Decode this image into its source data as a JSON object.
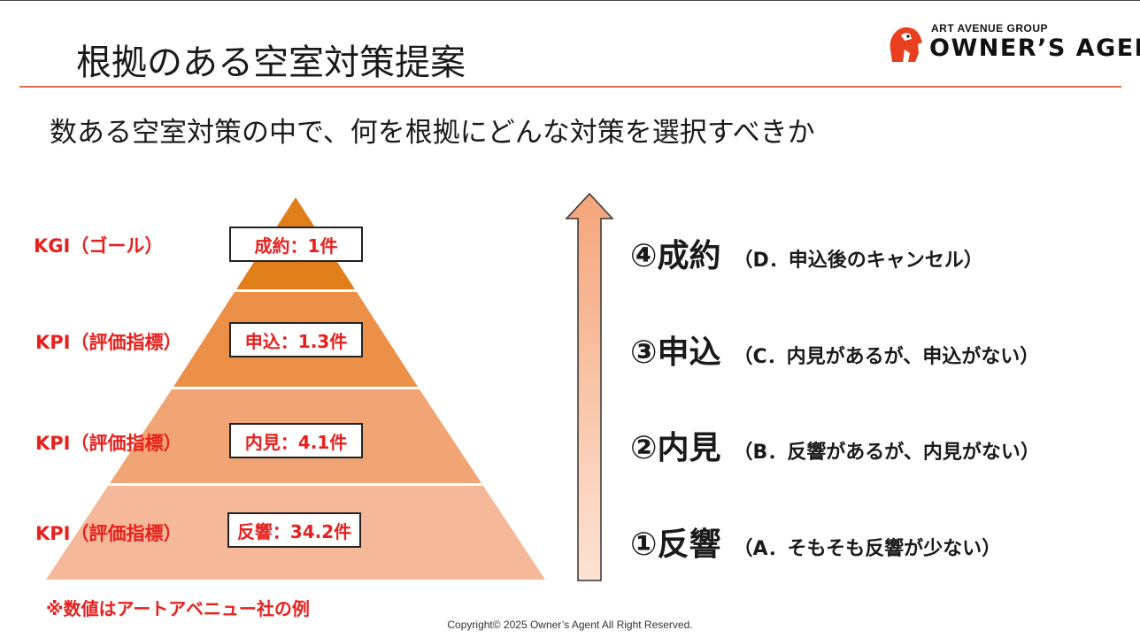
{
  "slide": {
    "title": "根拠のある空室対策提案",
    "subtitle": "数ある空室対策の中で、何を根拠にどんな対策を選択すべきか",
    "note": "※数値はアートアベニュー社の例",
    "copyright": "Copyright©  2025 Owner’s Agent All Right Reserved."
  },
  "logo": {
    "group": "ART AVENUE GROUP",
    "name": "OWNER’S AGENT",
    "mark": "gorilla-logo",
    "color": "#e8401f"
  },
  "pyramid": {
    "tiers": [
      {
        "label": "KGI（ゴール）",
        "value": "成約：1件",
        "color": "#e07e1a"
      },
      {
        "label": "KPI（評価指標）",
        "value": "申込：1.3件",
        "color": "#ec8f47"
      },
      {
        "label": "KPI（評価指標）",
        "value": "内見：4.1件",
        "color": "#f1a575"
      },
      {
        "label": "KPI（評価指標）",
        "value": "反響：34.2件",
        "color": "#f5b99a"
      }
    ]
  },
  "stages": [
    {
      "mark": "④成約",
      "note": "（D．申込後のキャンセル）"
    },
    {
      "mark": "③申込",
      "note": "（C．内見があるが、申込がない）"
    },
    {
      "mark": "②内見",
      "note": "（B．反響があるが、内見がない）"
    },
    {
      "mark": "①反響",
      "note": "（A．そもそも反響が少ない）"
    }
  ],
  "colors": {
    "accent_red": "#e8201d",
    "rule": "#e06b4d"
  },
  "icons": {
    "arrow": "up-arrow-icon"
  }
}
